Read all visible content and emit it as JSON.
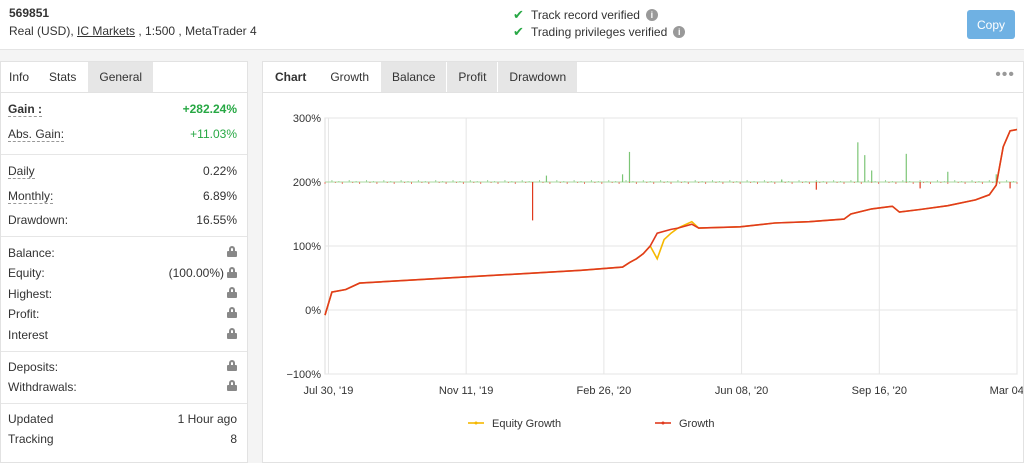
{
  "header": {
    "account_id": "569851",
    "account_type": "Real (USD),",
    "broker": "IC Markets",
    "leverage_platform": ", 1:500 , MetaTrader 4",
    "verifications": [
      "Track record verified",
      "Trading privileges verified"
    ],
    "copy_label": "Copy"
  },
  "left_tabs": [
    "Info",
    "Stats",
    "General"
  ],
  "stats": {
    "gain_label": "Gain :",
    "gain_value": "+282.24%",
    "abs_gain_label": "Abs. Gain:",
    "abs_gain_value": "+11.03%",
    "daily_label": "Daily",
    "daily_value": "0.22%",
    "monthly_label": "Monthly:",
    "monthly_value": "6.89%",
    "drawdown_label": "Drawdown:",
    "drawdown_value": "16.55%",
    "balance_label": "Balance:",
    "equity_label": "Equity:",
    "equity_value": "(100.00%)",
    "highest_label": "Highest:",
    "profit_label": "Profit:",
    "interest_label": "Interest",
    "deposits_label": "Deposits:",
    "withdrawals_label": "Withdrawals:",
    "updated_label": "Updated",
    "updated_value": "1 Hour ago",
    "tracking_label": "Tracking",
    "tracking_value": "8"
  },
  "chart_tabs": [
    "Chart",
    "Growth",
    "Balance",
    "Profit",
    "Drawdown"
  ],
  "chart_data": {
    "type": "line",
    "y_ticks": [
      "300%",
      "200%",
      "100%",
      "0%",
      "−100%"
    ],
    "ylim": [
      -100,
      300
    ],
    "x_ticks": [
      "Jul 30, '19",
      "Nov 11, '19",
      "Feb 26, '20",
      "Jun 08, '20",
      "Sep 16, '20",
      "Mar 04, '21"
    ],
    "series": [
      {
        "name": "Equity Growth",
        "color": "#f5b800",
        "values": [
          [
            0,
            -8
          ],
          [
            0.01,
            28
          ],
          [
            0.03,
            32
          ],
          [
            0.05,
            42
          ],
          [
            0.37,
            62
          ],
          [
            0.43,
            67
          ],
          [
            0.44,
            74
          ],
          [
            0.45,
            80
          ],
          [
            0.46,
            88
          ],
          [
            0.47,
            100
          ],
          [
            0.48,
            80
          ],
          [
            0.49,
            110
          ],
          [
            0.5,
            120
          ],
          [
            0.51,
            128
          ],
          [
            0.53,
            138
          ],
          [
            0.54,
            128
          ],
          [
            0.6,
            130
          ],
          [
            0.65,
            136
          ],
          [
            0.7,
            138
          ],
          [
            0.75,
            142
          ],
          [
            0.76,
            150
          ],
          [
            0.79,
            158
          ],
          [
            0.82,
            162
          ],
          [
            0.83,
            153
          ],
          [
            0.86,
            157
          ],
          [
            0.9,
            163
          ],
          [
            0.94,
            172
          ],
          [
            0.96,
            180
          ],
          [
            0.97,
            195
          ],
          [
            0.98,
            255
          ],
          [
            0.99,
            280
          ],
          [
            1.0,
            282
          ]
        ]
      },
      {
        "name": "Growth",
        "color": "#e03a1e",
        "values": [
          [
            0,
            -8
          ],
          [
            0.01,
            28
          ],
          [
            0.03,
            32
          ],
          [
            0.05,
            42
          ],
          [
            0.37,
            62
          ],
          [
            0.43,
            67
          ],
          [
            0.44,
            74
          ],
          [
            0.45,
            80
          ],
          [
            0.46,
            88
          ],
          [
            0.47,
            100
          ],
          [
            0.48,
            120
          ],
          [
            0.5,
            126
          ],
          [
            0.51,
            128
          ],
          [
            0.53,
            134
          ],
          [
            0.54,
            128
          ],
          [
            0.6,
            130
          ],
          [
            0.65,
            136
          ],
          [
            0.7,
            138
          ],
          [
            0.75,
            142
          ],
          [
            0.76,
            150
          ],
          [
            0.79,
            158
          ],
          [
            0.82,
            162
          ],
          [
            0.83,
            153
          ],
          [
            0.86,
            157
          ],
          [
            0.9,
            163
          ],
          [
            0.94,
            172
          ],
          [
            0.96,
            180
          ],
          [
            0.97,
            195
          ],
          [
            0.98,
            255
          ],
          [
            0.99,
            280
          ],
          [
            1.0,
            282
          ]
        ]
      }
    ],
    "legend": [
      "Equity Growth",
      "Growth"
    ]
  }
}
